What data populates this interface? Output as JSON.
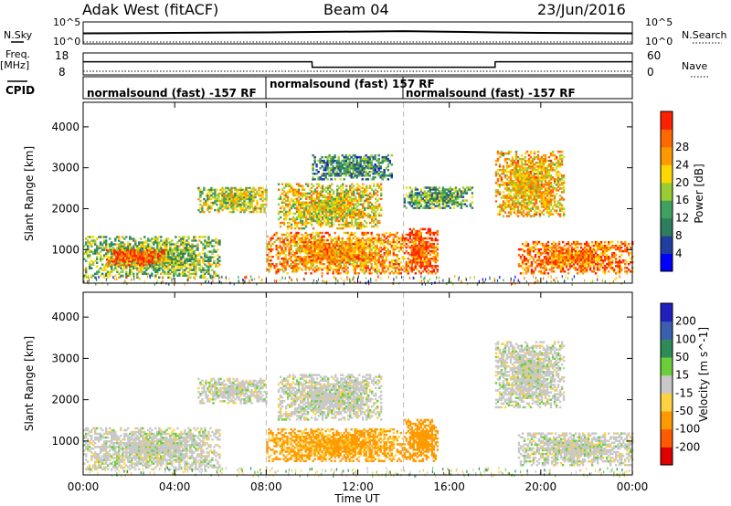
{
  "header": {
    "title": "Adak West (fitACF)",
    "beam": "Beam 04",
    "date": "23/Jun/2016"
  },
  "side_labels": {
    "nsky": "N.Sky",
    "nsky_hi": "10^5",
    "nsky_lo": "10^0",
    "freq": "Freq.",
    "freq_unit": "[MHz]",
    "freq_hi": "18",
    "freq_lo": "8",
    "cpid": "CPID",
    "nsearch": "N.Search",
    "nsearch_hi": "10^5",
    "nsearch_lo": "10^0",
    "nave": "Nave",
    "nave_hi": "60",
    "nave_lo": "0"
  },
  "cpid_segments": [
    {
      "label": "normalsound (fast) -157 RF"
    },
    {
      "label": "normalsound (fast) 157 RF"
    },
    {
      "label": "normalsound (fast) -157 RF"
    }
  ],
  "chart_data": [
    {
      "type": "line",
      "panel": "noise",
      "series": [
        {
          "name": "N.Sky",
          "x": [
            0,
            4,
            8,
            12,
            14,
            18,
            20,
            24
          ],
          "y": [
            2.4,
            2.5,
            2.6,
            2.8,
            2.9,
            2.6,
            2.5,
            2.4
          ]
        }
      ]
    },
    {
      "type": "line",
      "panel": "frequency",
      "series": [
        {
          "name": "Freq.",
          "x": [
            0,
            10,
            10.01,
            18,
            18.01,
            24
          ],
          "y": [
            14,
            14,
            11.5,
            11.5,
            14,
            14
          ]
        },
        {
          "name": "Nave",
          "x": [
            0,
            24
          ],
          "y": [
            10,
            10
          ]
        }
      ]
    },
    {
      "type": "heatmap",
      "title": "Power",
      "xlabel": "Time UT",
      "ylabel": "Slant Range [km]",
      "x_ticks": [
        "00:00",
        "04:00",
        "08:00",
        "12:00",
        "16:00",
        "20:00",
        "00:00"
      ],
      "y_ticks": [
        "1000",
        "2000",
        "3000",
        "4000"
      ],
      "xlim": [
        0,
        24
      ],
      "ylim": [
        180,
        4600
      ],
      "colorbar": {
        "label": "Power [dB]",
        "ticks": [
          "4",
          "8",
          "12",
          "16",
          "20",
          "24",
          "28"
        ],
        "range": [
          0,
          30
        ]
      },
      "features": [
        {
          "t0": 0.0,
          "t1": 6.0,
          "r0": 300,
          "r1": 1300,
          "value": 14
        },
        {
          "t0": 1.0,
          "t1": 3.5,
          "r0": 600,
          "r1": 1000,
          "value": 26
        },
        {
          "t0": 5.0,
          "t1": 8.0,
          "r0": 1900,
          "r1": 2500,
          "value": 16
        },
        {
          "t0": 8.0,
          "t1": 14.0,
          "r0": 400,
          "r1": 1400,
          "value": 22
        },
        {
          "t0": 8.5,
          "t1": 13.0,
          "r0": 1500,
          "r1": 2600,
          "value": 18
        },
        {
          "t0": 10.0,
          "t1": 13.5,
          "r0": 2700,
          "r1": 3300,
          "value": 10
        },
        {
          "t0": 14.0,
          "t1": 15.5,
          "r0": 400,
          "r1": 1500,
          "value": 26
        },
        {
          "t0": 14.0,
          "t1": 17.0,
          "r0": 2000,
          "r1": 2500,
          "value": 12
        },
        {
          "t0": 18.0,
          "t1": 21.0,
          "r0": 1800,
          "r1": 3400,
          "value": 20
        },
        {
          "t0": 19.0,
          "t1": 24.0,
          "r0": 400,
          "r1": 1200,
          "value": 24
        }
      ]
    },
    {
      "type": "heatmap",
      "title": "Velocity",
      "xlabel": "Time UT",
      "ylabel": "Slant Range [km]",
      "x_ticks": [
        "00:00",
        "04:00",
        "08:00",
        "12:00",
        "16:00",
        "20:00",
        "00:00"
      ],
      "y_ticks": [
        "1000",
        "2000",
        "3000",
        "4000"
      ],
      "xlim": [
        0,
        24
      ],
      "ylim": [
        180,
        4600
      ],
      "colorbar": {
        "label": "Velocity [m s^-1]",
        "ticks": [
          "200",
          "100",
          "50",
          "15",
          "-15",
          "-50",
          "-100",
          "-200"
        ],
        "range": [
          -250,
          250
        ]
      },
      "features": [
        {
          "t0": 0.0,
          "t1": 6.0,
          "r0": 300,
          "r1": 1300,
          "value": 0
        },
        {
          "t0": 5.0,
          "t1": 8.0,
          "r0": 1900,
          "r1": 2500,
          "value": 0
        },
        {
          "t0": 8.5,
          "t1": 13.0,
          "r0": 1500,
          "r1": 2600,
          "value": 0
        },
        {
          "t0": 8.0,
          "t1": 14.0,
          "r0": 500,
          "r1": 1300,
          "value": -60
        },
        {
          "t0": 14.0,
          "t1": 15.5,
          "r0": 500,
          "r1": 1500,
          "value": -80
        },
        {
          "t0": 18.0,
          "t1": 21.0,
          "r0": 1800,
          "r1": 3400,
          "value": 0
        },
        {
          "t0": 19.0,
          "t1": 24.0,
          "r0": 400,
          "r1": 1200,
          "value": 0
        }
      ]
    }
  ]
}
